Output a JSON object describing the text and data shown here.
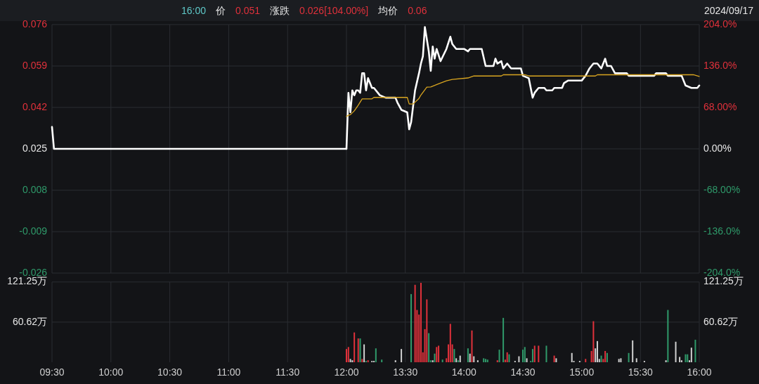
{
  "chart_data": [
    {
      "type": "line",
      "annotations": [
        "16:00",
        "价",
        "0.051",
        "涨跌",
        "0.026[104.00%]",
        "均价",
        "0.06",
        "2024/09/17"
      ],
      "xlim": [
        "2024-09-17T09:30",
        "2024-09-17T12:00"
      ],
      "xticks": [
        {
          "value": "2024-09-17T09:30",
          "label": null
        },
        {
          "value": "2024-09-17T10:00",
          "label": null
        },
        {
          "value": "2024-09-17T10:30",
          "label": null
        },
        {
          "value": "2024-09-17T11:00",
          "label": null
        },
        {
          "value": "2024-09-17T11:30",
          "label": null
        },
        {
          "value": "2024-09-17T12:00",
          "label": null
        }
      ],
      "ylim": [
        -0.026,
        0.076
      ],
      "yticks": [
        0.076,
        0.059,
        0.042,
        0.025,
        0.008,
        -0.009,
        -0.026
      ],
      "grid": true,
      "tick_labels": "y",
      "series": [
        {
          "color": "#ffffff",
          "x": [
            "2024-09-17T09:30",
            "2024-09-17T09:31",
            "2024-09-17T12:00"
          ],
          "values": [
            0.034,
            0.025,
            0.025
          ]
        }
      ]
    },
    {
      "type": "line",
      "xlim": [
        "2024-09-17T13:00",
        "2024-09-17T16:00"
      ],
      "xticks": [
        {
          "value": "2024-09-17T13:30",
          "label": null
        },
        {
          "value": "2024-09-17T14:00",
          "label": null
        },
        {
          "value": "2024-09-17T14:30",
          "label": null
        },
        {
          "value": "2024-09-17T15:00",
          "label": null
        },
        {
          "value": "2024-09-17T15:30",
          "label": null
        },
        {
          "value": "2024-09-17T16:00",
          "label": null
        }
      ],
      "ylim": [
        -0.026,
        0.076
      ],
      "y2lim": [
        -204,
        204
      ],
      "y2ticks": [
        {
          "value": 204,
          "label": "204.0%"
        },
        {
          "value": 136,
          "label": "136.0%"
        },
        {
          "value": 68,
          "label": "68.00%"
        },
        {
          "value": 0,
          "label": "0.00%"
        },
        {
          "value": -68,
          "label": "-68.00%"
        },
        {
          "value": -136,
          "label": "-136.0%"
        },
        {
          "value": -204,
          "label": "-204.0%"
        }
      ],
      "grid": true,
      "tick_labels": "y",
      "series": [
        {
          "color": "#ffffff",
          "x": [
            "2024-09-17T13:00",
            "2024-09-17T13:01",
            "2024-09-17T13:02",
            "2024-09-17T13:03",
            "2024-09-17T13:04",
            "2024-09-17T13:05",
            "2024-09-17T13:06",
            "2024-09-17T13:07",
            "2024-09-17T13:08",
            "2024-09-17T13:09",
            "2024-09-17T13:10",
            "2024-09-17T13:11",
            "2024-09-17T13:13",
            "2024-09-17T13:14",
            "2024-09-17T13:16",
            "2024-09-17T13:17",
            "2024-09-17T13:20",
            "2024-09-17T13:25",
            "2024-09-17T13:26",
            "2024-09-17T13:28",
            "2024-09-17T13:31",
            "2024-09-17T13:32",
            "2024-09-17T13:33",
            "2024-09-17T13:35",
            "2024-09-17T13:37",
            "2024-09-17T13:38",
            "2024-09-17T13:39",
            "2024-09-17T13:40",
            "2024-09-17T13:42",
            "2024-09-17T13:43",
            "2024-09-17T13:44",
            "2024-09-17T13:45",
            "2024-09-17T13:46",
            "2024-09-17T13:48",
            "2024-09-17T13:51",
            "2024-09-17T13:53",
            "2024-09-17T13:54",
            "2024-09-17T13:56",
            "2024-09-17T14:00",
            "2024-09-17T14:02",
            "2024-09-17T14:03",
            "2024-09-17T14:09",
            "2024-09-17T14:11",
            "2024-09-17T14:15",
            "2024-09-17T14:16",
            "2024-09-17T14:17",
            "2024-09-17T14:19",
            "2024-09-17T14:20",
            "2024-09-17T14:22",
            "2024-09-17T14:24",
            "2024-09-17T14:29",
            "2024-09-17T14:30",
            "2024-09-17T14:33",
            "2024-09-17T14:35",
            "2024-09-17T14:36",
            "2024-09-17T14:38",
            "2024-09-17T14:41",
            "2024-09-17T14:42",
            "2024-09-17T14:45",
            "2024-09-17T14:46",
            "2024-09-17T14:50",
            "2024-09-17T14:51",
            "2024-09-17T14:53",
            "2024-09-17T15:00",
            "2024-09-17T15:02",
            "2024-09-17T15:04",
            "2024-09-17T15:06",
            "2024-09-17T15:08",
            "2024-09-17T15:10",
            "2024-09-17T15:12",
            "2024-09-17T15:13",
            "2024-09-17T15:15",
            "2024-09-17T15:17",
            "2024-09-17T15:19",
            "2024-09-17T15:23",
            "2024-09-17T15:24",
            "2024-09-17T15:37",
            "2024-09-17T15:38",
            "2024-09-17T15:43",
            "2024-09-17T15:44",
            "2024-09-17T15:51",
            "2024-09-17T15:53",
            "2024-09-17T15:56",
            "2024-09-17T15:58",
            "2024-09-17T15:59",
            "2024-09-17T16:00"
          ],
          "values": [
            0.025,
            0.048,
            0.04,
            0.049,
            0.047,
            0.049,
            0.049,
            0.048,
            0.056,
            0.056,
            0.049,
            0.054,
            0.05,
            0.05,
            0.048,
            0.047,
            0.046,
            0.046,
            0.044,
            0.041,
            0.04,
            0.033,
            0.036,
            0.049,
            0.056,
            0.06,
            0.063,
            0.075,
            0.065,
            0.057,
            0.067,
            0.062,
            0.066,
            0.061,
            0.066,
            0.071,
            0.068,
            0.066,
            0.066,
            0.065,
            0.066,
            0.066,
            0.059,
            0.059,
            0.062,
            0.06,
            0.061,
            0.058,
            0.06,
            0.058,
            0.058,
            0.055,
            0.054,
            0.046,
            0.048,
            0.05,
            0.05,
            0.049,
            0.049,
            0.05,
            0.05,
            0.052,
            0.053,
            0.053,
            0.055,
            0.058,
            0.06,
            0.06,
            0.058,
            0.062,
            0.059,
            0.059,
            0.056,
            0.056,
            0.056,
            0.055,
            0.055,
            0.056,
            0.056,
            0.055,
            0.055,
            0.051,
            0.05,
            0.05,
            0.05,
            0.051
          ]
        },
        {
          "color": "#d9a520",
          "x": [
            "2024-09-17T13:00",
            "2024-09-17T13:01",
            "2024-09-17T13:02",
            "2024-09-17T13:04",
            "2024-09-17T13:06",
            "2024-09-17T13:08",
            "2024-09-17T13:13",
            "2024-09-17T13:14",
            "2024-09-17T13:31",
            "2024-09-17T13:32",
            "2024-09-17T13:34",
            "2024-09-17T13:37",
            "2024-09-17T13:38",
            "2024-09-17T13:41",
            "2024-09-17T13:43",
            "2024-09-17T13:47",
            "2024-09-17T13:51",
            "2024-09-17T13:54",
            "2024-09-17T14:02",
            "2024-09-17T14:05",
            "2024-09-17T14:19",
            "2024-09-17T14:20",
            "2024-09-17T14:31",
            "2024-09-17T14:33",
            "2024-09-17T15:07",
            "2024-09-17T15:08",
            "2024-09-17T15:57",
            "2024-09-17T16:00"
          ],
          "values": [
            0.0383,
            0.0388,
            0.039,
            0.0406,
            0.0429,
            0.0455,
            0.0455,
            0.0461,
            0.0461,
            0.0434,
            0.0434,
            0.0457,
            0.0471,
            0.0503,
            0.0504,
            0.0517,
            0.0529,
            0.0535,
            0.0541,
            0.0549,
            0.0549,
            0.0554,
            0.0554,
            0.0549,
            0.0549,
            0.0554,
            0.0554,
            0.0547
          ]
        }
      ]
    },
    {
      "type": "bar",
      "xlim": [
        "2024-09-17T09:30",
        "2024-09-17T12:00"
      ],
      "xticks": [
        {
          "value": "2024-09-17T09:30",
          "label": "09:30"
        },
        {
          "value": "2024-09-17T10:00",
          "label": "10:00"
        },
        {
          "value": "2024-09-17T10:30",
          "label": "10:30"
        },
        {
          "value": "2024-09-17T11:00",
          "label": "11:00"
        },
        {
          "value": "2024-09-17T11:30",
          "label": "11:30"
        },
        {
          "value": "2024-09-17T12:00",
          "label": "12:00"
        }
      ],
      "ylim": [
        0,
        121.25
      ],
      "yticks": [
        {
          "value": 121.25,
          "label": "121.25万"
        },
        {
          "value": 60.62,
          "label": "60.62万"
        }
      ],
      "grid": true
    },
    {
      "type": "bar",
      "xlim": [
        "2024-09-17T13:00",
        "2024-09-17T16:00"
      ],
      "xticks": [
        {
          "value": "2024-09-17T13:30",
          "label": "13:30"
        },
        {
          "value": "2024-09-17T14:00",
          "label": "14:00"
        },
        {
          "value": "2024-09-17T14:30",
          "label": "14:30"
        },
        {
          "value": "2024-09-17T15:00",
          "label": "15:00"
        },
        {
          "value": "2024-09-17T15:30",
          "label": "15:30"
        },
        {
          "value": "2024-09-17T16:00",
          "label": "16:00"
        }
      ],
      "ylim": [
        0,
        121.25
      ],
      "y2lim": [
        0,
        121.25
      ],
      "y2ticks": [
        {
          "value": 121.25,
          "label": "121.25万"
        },
        {
          "value": 60.62,
          "label": "60.62万"
        }
      ],
      "grid": true,
      "series": [
        {
          "color": "#e0313b",
          "x": [
            "2024-09-17T13:00",
            "2024-09-17T13:01",
            "2024-09-17T13:04",
            "2024-09-17T13:06",
            "2024-09-17T13:08",
            "2024-09-17T13:11",
            "2024-09-17T13:35",
            "2024-09-17T13:36",
            "2024-09-17T13:37",
            "2024-09-17T13:38",
            "2024-09-17T13:39",
            "2024-09-17T13:40",
            "2024-09-17T13:41",
            "2024-09-17T13:46",
            "2024-09-17T13:47",
            "2024-09-17T13:51",
            "2024-09-17T13:52",
            "2024-09-17T13:53",
            "2024-09-17T13:54",
            "2024-09-17T14:04",
            "2024-09-17T14:17",
            "2024-09-17T14:21",
            "2024-09-17T14:22",
            "2024-09-17T14:36",
            "2024-09-17T14:38",
            "2024-09-17T14:46",
            "2024-09-17T15:02",
            "2024-09-17T15:05",
            "2024-09-17T15:06",
            "2024-09-17T15:11",
            "2024-09-17T15:12"
          ],
          "values": [
            20,
            23,
            45,
            36,
            5,
            3,
            117,
            79,
            72,
            120,
            15,
            50,
            95,
            23,
            25,
            6,
            27,
            58,
            27,
            48,
            3,
            4,
            15,
            25,
            25,
            10,
            5,
            17,
            62,
            5,
            17
          ]
        },
        {
          "color": "#2f9a6a",
          "x": [
            "2024-09-17T13:07",
            "2024-09-17T13:10",
            "2024-09-17T13:15",
            "2024-09-17T13:18",
            "2024-09-17T13:33",
            "2024-09-17T13:42",
            "2024-09-17T13:43",
            "2024-09-17T13:45",
            "2024-09-17T13:49",
            "2024-09-17T13:55",
            "2024-09-17T13:57",
            "2024-09-17T14:02",
            "2024-09-17T14:10",
            "2024-09-17T14:11",
            "2024-09-17T14:12",
            "2024-09-17T14:18",
            "2024-09-17T14:20",
            "2024-09-17T14:23",
            "2024-09-17T14:30",
            "2024-09-17T14:31",
            "2024-09-17T14:34",
            "2024-09-17T14:35",
            "2024-09-17T14:42",
            "2024-09-17T15:10",
            "2024-09-17T15:13",
            "2024-09-17T15:24",
            "2024-09-17T15:44",
            "2024-09-17T15:53",
            "2024-09-17T15:54",
            "2024-09-17T15:58"
          ],
          "values": [
            36,
            2,
            21,
            4,
            103,
            44,
            3,
            13,
            4,
            20,
            3,
            21,
            6,
            5,
            4,
            19,
            67,
            12,
            19,
            23,
            2,
            20,
            25,
            10,
            14,
            14,
            79,
            12,
            12,
            34
          ]
        },
        {
          "color": "#d0d0d0",
          "x": [
            "2024-09-17T13:02",
            "2024-09-17T13:03",
            "2024-09-17T13:09",
            "2024-09-17T13:13",
            "2024-09-17T13:14",
            "2024-09-17T13:25",
            "2024-09-17T13:28",
            "2024-09-17T13:44",
            "2024-09-17T13:56",
            "2024-09-17T13:58",
            "2024-09-17T14:03",
            "2024-09-17T14:05",
            "2024-09-17T14:07",
            "2024-09-17T14:26",
            "2024-09-17T14:28",
            "2024-09-17T14:32",
            "2024-09-17T14:47",
            "2024-09-17T14:55",
            "2024-09-17T14:56",
            "2024-09-17T14:59",
            "2024-09-17T15:07",
            "2024-09-17T15:08",
            "2024-09-17T15:09",
            "2024-09-17T15:19",
            "2024-09-17T15:20",
            "2024-09-17T15:26",
            "2024-09-17T15:28",
            "2024-09-17T15:32",
            "2024-09-17T15:43",
            "2024-09-17T15:48",
            "2024-09-17T15:50",
            "2024-09-17T15:51",
            "2024-09-17T15:55",
            "2024-09-17T15:56"
          ],
          "values": [
            5,
            3,
            27,
            2,
            2,
            3,
            20,
            3,
            6,
            10,
            13,
            9,
            3,
            2,
            9,
            6,
            6,
            14,
            2,
            2,
            21,
            32,
            5,
            5,
            6,
            33,
            6,
            2,
            3,
            31,
            8,
            3,
            3,
            22
          ]
        }
      ]
    }
  ]
}
